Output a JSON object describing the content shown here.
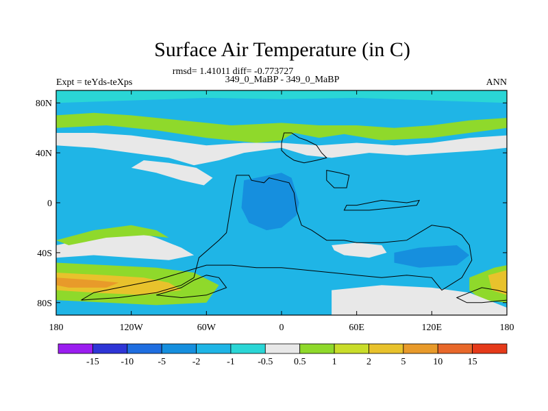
{
  "chart_data": {
    "type": "heatmap",
    "title": "Surface Air Temperature (in C)",
    "stats": "rmsd= 1.41011 diff= -0.773727",
    "left_label": "Expt = teYds-teXps",
    "center_label": "349_0_MaBP - 349_0_MaBP",
    "right_label": "ANN",
    "x_ticks": [
      {
        "value": -180,
        "label": "180"
      },
      {
        "value": -120,
        "label": "120W"
      },
      {
        "value": -60,
        "label": "60W"
      },
      {
        "value": 0,
        "label": "0"
      },
      {
        "value": 60,
        "label": "60E"
      },
      {
        "value": 120,
        "label": "120E"
      },
      {
        "value": 180,
        "label": "180"
      }
    ],
    "y_ticks": [
      {
        "value": 80,
        "label": "80N"
      },
      {
        "value": 40,
        "label": "40N"
      },
      {
        "value": 0,
        "label": "0"
      },
      {
        "value": -40,
        "label": "40S"
      },
      {
        "value": -80,
        "label": "80S"
      }
    ],
    "xlim": [
      -180,
      180
    ],
    "ylim": [
      -90,
      90
    ],
    "colorbar": {
      "levels": [
        "-15",
        "-10",
        "-5",
        "-2",
        "-1",
        "-0.5",
        "0.5",
        "1",
        "2",
        "5",
        "10",
        "15"
      ],
      "colors": [
        "#9b1ef0",
        "#2e35d6",
        "#1f6ee0",
        "#168fde",
        "#1fb5e6",
        "#2ad6d6",
        "#e8e8e8",
        "#8fd92b",
        "#c9dd2a",
        "#e8c22c",
        "#e89a2a",
        "#e8682a",
        "#e53a1a"
      ]
    },
    "field_regions": [
      {
        "name": "background",
        "category": "-2 to -1",
        "color": "#1fb5e6",
        "polygon": [
          [
            -180,
            -90
          ],
          [
            180,
            -90
          ],
          [
            180,
            90
          ],
          [
            -180,
            90
          ]
        ]
      },
      {
        "name": "north-warm-band",
        "category": "0.5 to 1",
        "color": "#8fd92b",
        "polygon": [
          [
            -180,
            60
          ],
          [
            -140,
            62
          ],
          [
            -100,
            58
          ],
          [
            -60,
            52
          ],
          [
            -20,
            48
          ],
          [
            0,
            50
          ],
          [
            10,
            56
          ],
          [
            30,
            52
          ],
          [
            50,
            55
          ],
          [
            80,
            50
          ],
          [
            120,
            52
          ],
          [
            150,
            56
          ],
          [
            180,
            60
          ],
          [
            180,
            68
          ],
          [
            150,
            66
          ],
          [
            120,
            62
          ],
          [
            90,
            60
          ],
          [
            60,
            62
          ],
          [
            30,
            62
          ],
          [
            0,
            64
          ],
          [
            -40,
            62
          ],
          [
            -80,
            66
          ],
          [
            -120,
            70
          ],
          [
            -150,
            72
          ],
          [
            -180,
            70
          ]
        ]
      },
      {
        "name": "north-neutral-band",
        "category": "-0.5 to 0.5",
        "color": "#e8e8e8",
        "polygon": [
          [
            -180,
            46
          ],
          [
            -150,
            44
          ],
          [
            -120,
            40
          ],
          [
            -90,
            36
          ],
          [
            -70,
            30
          ],
          [
            -50,
            34
          ],
          [
            -30,
            40
          ],
          [
            0,
            44
          ],
          [
            20,
            38
          ],
          [
            40,
            36
          ],
          [
            70,
            40
          ],
          [
            100,
            38
          ],
          [
            130,
            40
          ],
          [
            160,
            42
          ],
          [
            180,
            44
          ],
          [
            180,
            54
          ],
          [
            150,
            52
          ],
          [
            120,
            48
          ],
          [
            90,
            46
          ],
          [
            60,
            48
          ],
          [
            30,
            46
          ],
          [
            0,
            48
          ],
          [
            -30,
            48
          ],
          [
            -60,
            46
          ],
          [
            -90,
            50
          ],
          [
            -120,
            54
          ],
          [
            -150,
            56
          ],
          [
            -180,
            56
          ]
        ]
      },
      {
        "name": "arctic-cap",
        "category": "-1 to -0.5",
        "color": "#2ad6d6",
        "polygon": [
          [
            -180,
            80
          ],
          [
            -120,
            82
          ],
          [
            -60,
            84
          ],
          [
            0,
            83
          ],
          [
            60,
            84
          ],
          [
            120,
            82
          ],
          [
            180,
            80
          ],
          [
            180,
            90
          ],
          [
            -180,
            90
          ]
        ]
      },
      {
        "name": "eastern-pacific-neutral",
        "category": "-0.5 to 0.5",
        "color": "#e8e8e8",
        "polygon": [
          [
            -120,
            28
          ],
          [
            -100,
            24
          ],
          [
            -80,
            18
          ],
          [
            -62,
            14
          ],
          [
            -55,
            20
          ],
          [
            -68,
            28
          ],
          [
            -90,
            32
          ],
          [
            -110,
            34
          ]
        ]
      },
      {
        "name": "south-pacific-neutral",
        "category": "-0.5 to 0.5",
        "color": "#e8e8e8",
        "polygon": [
          [
            -180,
            -34
          ],
          [
            -150,
            -28
          ],
          [
            -120,
            -22
          ],
          [
            -100,
            -28
          ],
          [
            -80,
            -36
          ],
          [
            -70,
            -42
          ],
          [
            -90,
            -46
          ],
          [
            -120,
            -44
          ],
          [
            -150,
            -42
          ],
          [
            -180,
            -44
          ]
        ]
      },
      {
        "name": "south-pacific-warm",
        "category": "0.5 to 1",
        "color": "#8fd92b",
        "polygon": [
          [
            -180,
            -30
          ],
          [
            -150,
            -22
          ],
          [
            -120,
            -18
          ],
          [
            -100,
            -22
          ],
          [
            -90,
            -28
          ],
          [
            -110,
            -26
          ],
          [
            -140,
            -28
          ],
          [
            -170,
            -34
          ]
        ]
      },
      {
        "name": "southern-ocean-warm",
        "category": "0.5 to 1",
        "color": "#8fd92b",
        "polygon": [
          [
            -180,
            -48
          ],
          [
            -140,
            -50
          ],
          [
            -100,
            -52
          ],
          [
            -70,
            -56
          ],
          [
            -50,
            -66
          ],
          [
            -60,
            -80
          ],
          [
            -100,
            -82
          ],
          [
            -140,
            -80
          ],
          [
            -180,
            -78
          ]
        ]
      },
      {
        "name": "southern-ocean-hot",
        "category": "2 to 5",
        "color": "#e8c22c",
        "polygon": [
          [
            -180,
            -56
          ],
          [
            -140,
            -58
          ],
          [
            -110,
            -60
          ],
          [
            -90,
            -64
          ],
          [
            -80,
            -70
          ],
          [
            -110,
            -74
          ],
          [
            -150,
            -72
          ],
          [
            -180,
            -70
          ]
        ]
      },
      {
        "name": "southern-ocean-hottest",
        "category": "5 to 10",
        "color": "#e89a2a",
        "polygon": [
          [
            -180,
            -60
          ],
          [
            -150,
            -62
          ],
          [
            -130,
            -64
          ],
          [
            -140,
            -68
          ],
          [
            -170,
            -68
          ],
          [
            -180,
            -66
          ]
        ]
      },
      {
        "name": "east-southern-warm",
        "category": "0.5 to 1",
        "color": "#8fd92b",
        "polygon": [
          [
            150,
            -60
          ],
          [
            170,
            -52
          ],
          [
            180,
            -50
          ],
          [
            180,
            -80
          ],
          [
            160,
            -78
          ],
          [
            150,
            -70
          ]
        ]
      },
      {
        "name": "east-southern-hot",
        "category": "2 to 5",
        "color": "#e8c22c",
        "polygon": [
          [
            165,
            -58
          ],
          [
            180,
            -54
          ],
          [
            180,
            -74
          ],
          [
            168,
            -70
          ]
        ]
      },
      {
        "name": "antarctic-neutral",
        "category": "-0.5 to 0.5",
        "color": "#e8e8e8",
        "polygon": [
          [
            40,
            -70
          ],
          [
            80,
            -66
          ],
          [
            120,
            -68
          ],
          [
            150,
            -72
          ],
          [
            170,
            -80
          ],
          [
            180,
            -84
          ],
          [
            180,
            -90
          ],
          [
            40,
            -90
          ]
        ]
      },
      {
        "name": "continent-cool",
        "category": "-5 to -2",
        "color": "#168fde",
        "polygon": [
          [
            -30,
            18
          ],
          [
            -10,
            22
          ],
          [
            0,
            24
          ],
          [
            8,
            20
          ],
          [
            14,
            0
          ],
          [
            12,
            -10
          ],
          [
            0,
            -20
          ],
          [
            -12,
            -22
          ],
          [
            -26,
            -16
          ],
          [
            -32,
            -4
          ]
        ]
      },
      {
        "name": "south-continent-cool",
        "category": "-5 to -2",
        "color": "#168fde",
        "polygon": [
          [
            90,
            -40
          ],
          [
            110,
            -36
          ],
          [
            140,
            -34
          ],
          [
            150,
            -42
          ],
          [
            140,
            -50
          ],
          [
            110,
            -52
          ],
          [
            90,
            -48
          ]
        ]
      },
      {
        "name": "indian-ocean-neutral",
        "category": "-0.5 to 0.5",
        "color": "#e8e8e8",
        "polygon": [
          [
            40,
            -34
          ],
          [
            60,
            -32
          ],
          [
            80,
            -34
          ],
          [
            84,
            -40
          ],
          [
            70,
            -44
          ],
          [
            50,
            -42
          ],
          [
            42,
            -38
          ]
        ]
      }
    ],
    "coastlines": [
      {
        "name": "main-continent-outline",
        "points": [
          [
            -36,
            22
          ],
          [
            -26,
            22
          ],
          [
            -24,
            18
          ],
          [
            -14,
            16
          ],
          [
            -10,
            20
          ],
          [
            -2,
            18
          ],
          [
            6,
            16
          ],
          [
            10,
            8
          ],
          [
            12,
            -6
          ],
          [
            16,
            -18
          ],
          [
            24,
            -22
          ],
          [
            36,
            -30
          ],
          [
            50,
            -30
          ],
          [
            60,
            -32
          ],
          [
            80,
            -32
          ],
          [
            100,
            -30
          ],
          [
            120,
            -18
          ],
          [
            134,
            -20
          ],
          [
            144,
            -26
          ],
          [
            150,
            -34
          ],
          [
            152,
            -46
          ],
          [
            144,
            -60
          ],
          [
            128,
            -70
          ],
          [
            120,
            -60
          ],
          [
            100,
            -58
          ],
          [
            80,
            -60
          ],
          [
            60,
            -58
          ],
          [
            40,
            -56
          ],
          [
            20,
            -54
          ],
          [
            0,
            -52
          ],
          [
            -20,
            -52
          ],
          [
            -40,
            -50
          ],
          [
            -60,
            -50
          ],
          [
            -80,
            -56
          ],
          [
            -100,
            -62
          ],
          [
            -130,
            -68
          ],
          [
            -150,
            -72
          ],
          [
            -160,
            -78
          ],
          [
            -130,
            -76
          ],
          [
            -100,
            -72
          ],
          [
            -80,
            -66
          ],
          [
            -70,
            -60
          ],
          [
            -66,
            -44
          ],
          [
            -50,
            -30
          ],
          [
            -44,
            -24
          ],
          [
            -42,
            -12
          ],
          [
            -40,
            0
          ],
          [
            -38,
            12
          ]
        ]
      },
      {
        "name": "northern-landmass-outline",
        "points": [
          [
            0,
            48
          ],
          [
            2,
            56
          ],
          [
            8,
            56
          ],
          [
            14,
            52
          ],
          [
            20,
            50
          ],
          [
            28,
            46
          ],
          [
            32,
            40
          ],
          [
            36,
            36
          ],
          [
            28,
            34
          ],
          [
            18,
            32
          ],
          [
            10,
            34
          ],
          [
            4,
            38
          ],
          [
            0,
            42
          ]
        ]
      },
      {
        "name": "island-east-of-continent",
        "points": [
          [
            36,
            26
          ],
          [
            46,
            24
          ],
          [
            54,
            22
          ],
          [
            52,
            12
          ],
          [
            42,
            12
          ],
          [
            36,
            18
          ]
        ]
      },
      {
        "name": "equatorial-eastern-landmass",
        "points": [
          [
            50,
            -6
          ],
          [
            70,
            -6
          ],
          [
            90,
            -4
          ],
          [
            108,
            -2
          ],
          [
            110,
            2
          ],
          [
            100,
            0
          ],
          [
            80,
            2
          ],
          [
            60,
            -2
          ],
          [
            52,
            -2
          ]
        ]
      },
      {
        "name": "southern-western-landmass",
        "points": [
          [
            -100,
            -74
          ],
          [
            -80,
            -68
          ],
          [
            -70,
            -62
          ],
          [
            -60,
            -58
          ],
          [
            -50,
            -60
          ],
          [
            -44,
            -68
          ],
          [
            -60,
            -74
          ],
          [
            -80,
            -76
          ]
        ]
      },
      {
        "name": "far-east-southern-landmass",
        "points": [
          [
            140,
            -76
          ],
          [
            150,
            -72
          ],
          [
            160,
            -68
          ],
          [
            172,
            -70
          ],
          [
            180,
            -72
          ],
          [
            180,
            -78
          ],
          [
            160,
            -80
          ],
          [
            148,
            -80
          ]
        ]
      }
    ]
  }
}
